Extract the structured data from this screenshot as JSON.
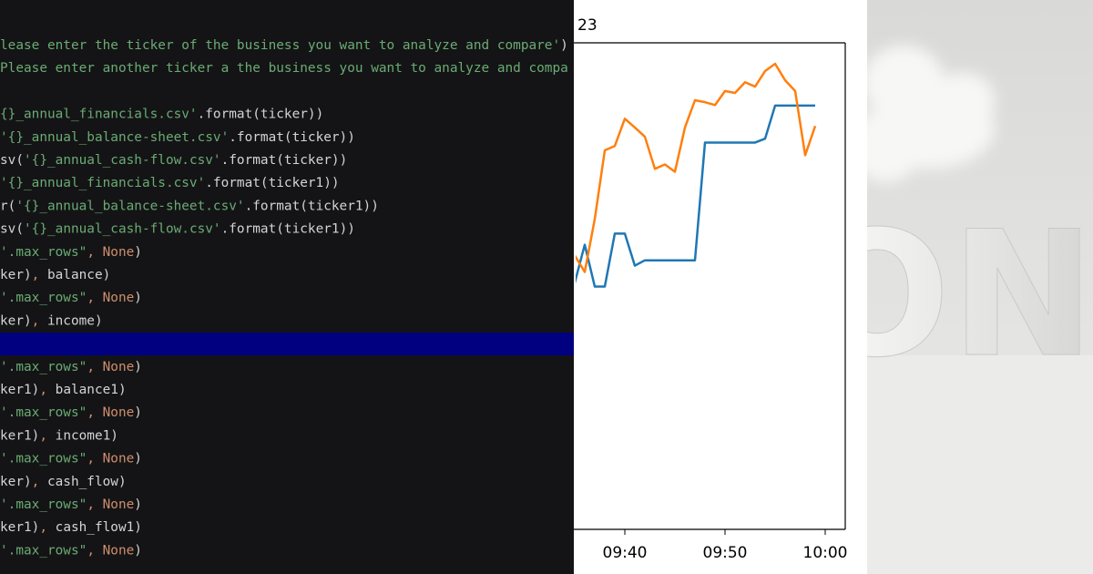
{
  "code": {
    "lines": [
      {
        "parts": [
          {
            "text": "lease enter the ticker of the business you want to analyze and compare'",
            "style": "s"
          },
          {
            "text": ")",
            "style": "c"
          }
        ]
      },
      {
        "parts": [
          {
            "text": "Please enter another ticker a the business you want to analyze and compa",
            "style": "s"
          }
        ]
      },
      {
        "parts": []
      },
      {
        "parts": [
          {
            "text": "{}_annual_financials.csv'",
            "style": "s"
          },
          {
            "text": ".format(ticker))",
            "style": "c"
          }
        ]
      },
      {
        "parts": [
          {
            "text": "'{}_annual_balance-sheet.csv'",
            "style": "s"
          },
          {
            "text": ".format(ticker))",
            "style": "c"
          }
        ]
      },
      {
        "parts": [
          {
            "text": "sv(",
            "style": "c"
          },
          {
            "text": "'{}_annual_cash-flow.csv'",
            "style": "s"
          },
          {
            "text": ".format(ticker))",
            "style": "c"
          }
        ]
      },
      {
        "parts": [
          {
            "text": "'{}_annual_financials.csv'",
            "style": "s"
          },
          {
            "text": ".format(ticker1))",
            "style": "c"
          }
        ]
      },
      {
        "parts": [
          {
            "text": "r(",
            "style": "c"
          },
          {
            "text": "'{}_annual_balance-sheet.csv'",
            "style": "s"
          },
          {
            "text": ".format(ticker1))",
            "style": "c"
          }
        ]
      },
      {
        "parts": [
          {
            "text": "sv(",
            "style": "c"
          },
          {
            "text": "'{}_annual_cash-flow.csv'",
            "style": "s"
          },
          {
            "text": ".format(ticker1))",
            "style": "c"
          }
        ]
      },
      {
        "parts": [
          {
            "text": "'.max_rows\"",
            "style": "s"
          },
          {
            "text": ", None",
            "style": "k"
          },
          {
            "text": ")",
            "style": "c"
          }
        ]
      },
      {
        "parts": [
          {
            "text": "ker)",
            "style": "c"
          },
          {
            "text": ", ",
            "style": "k"
          },
          {
            "text": "balance)",
            "style": "c"
          }
        ]
      },
      {
        "parts": [
          {
            "text": "'.max_rows\"",
            "style": "s"
          },
          {
            "text": ", None",
            "style": "k"
          },
          {
            "text": ")",
            "style": "c"
          }
        ]
      },
      {
        "parts": [
          {
            "text": "ker)",
            "style": "c"
          },
          {
            "text": ", ",
            "style": "k"
          },
          {
            "text": "income)",
            "style": "c"
          }
        ]
      },
      {
        "parts": [],
        "highlight": true
      },
      {
        "parts": [
          {
            "text": "'.max_rows\"",
            "style": "s"
          },
          {
            "text": ", None",
            "style": "k"
          },
          {
            "text": ")",
            "style": "c"
          }
        ]
      },
      {
        "parts": [
          {
            "text": "ker1)",
            "style": "c"
          },
          {
            "text": ", ",
            "style": "k"
          },
          {
            "text": "balance1)",
            "style": "c"
          }
        ]
      },
      {
        "parts": [
          {
            "text": "'.max_rows\"",
            "style": "s"
          },
          {
            "text": ", None",
            "style": "k"
          },
          {
            "text": ")",
            "style": "c"
          }
        ]
      },
      {
        "parts": [
          {
            "text": "ker1)",
            "style": "c"
          },
          {
            "text": ", ",
            "style": "k"
          },
          {
            "text": "income1)",
            "style": "c"
          }
        ]
      },
      {
        "parts": [
          {
            "text": "'.max_rows\"",
            "style": "s"
          },
          {
            "text": ", None",
            "style": "k"
          },
          {
            "text": ")",
            "style": "c"
          }
        ]
      },
      {
        "parts": [
          {
            "text": "ker)",
            "style": "c"
          },
          {
            "text": ", ",
            "style": "k"
          },
          {
            "text": "cash_flow)",
            "style": "c"
          }
        ]
      },
      {
        "parts": [
          {
            "text": "'.max_rows\"",
            "style": "s"
          },
          {
            "text": ", None",
            "style": "k"
          },
          {
            "text": ")",
            "style": "c"
          }
        ]
      },
      {
        "parts": [
          {
            "text": "ker1)",
            "style": "c"
          },
          {
            "text": ", ",
            "style": "k"
          },
          {
            "text": "cash_flow1)",
            "style": "c"
          }
        ]
      },
      {
        "parts": [
          {
            "text": "'.max_rows\"",
            "style": "s"
          },
          {
            "text": ", None",
            "style": "k"
          },
          {
            "text": ")",
            "style": "c"
          }
        ]
      }
    ]
  },
  "chart_data": {
    "type": "line",
    "title": "23",
    "x": [
      "09:35",
      "09:36",
      "09:37",
      "09:38",
      "09:39",
      "09:40",
      "09:41",
      "09:42",
      "09:43",
      "09:44",
      "09:45",
      "09:46",
      "09:47",
      "09:48",
      "09:49",
      "09:50",
      "09:51",
      "09:52",
      "09:53",
      "09:54",
      "09:55",
      "09:56",
      "09:57",
      "09:58",
      "09:59"
    ],
    "series": [
      {
        "color": "#1f77b4",
        "values": [
          50.7,
          58.5,
          49.9,
          49.9,
          60.8,
          60.8,
          54.2,
          55.3,
          55.3,
          55.3,
          55.3,
          55.3,
          55.3,
          79.5,
          79.5,
          79.5,
          79.5,
          79.5,
          79.5,
          80.3,
          87.1,
          87.1,
          87.1,
          87.1,
          87.1
        ]
      },
      {
        "color": "#ff7f0e",
        "values": [
          56.3,
          52.9,
          63.8,
          77.9,
          78.8,
          84.4,
          82.6,
          80.7,
          74.1,
          75.0,
          73.5,
          82.6,
          88.2,
          87.8,
          87.2,
          90.1,
          89.7,
          91.9,
          91.0,
          94.2,
          95.7,
          92.3,
          90.1,
          76.9,
          82.9
        ]
      }
    ],
    "xlim": [
      "09:35",
      "10:02"
    ],
    "ylim": [
      0,
      100
    ],
    "xticks": [
      "09:40",
      "09:50",
      "10:00"
    ]
  },
  "photo": {
    "text": "ON"
  }
}
